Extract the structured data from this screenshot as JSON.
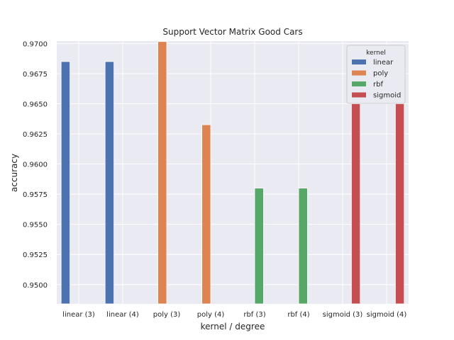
{
  "chart_data": {
    "type": "bar",
    "title": "Support Vector Matrix Good Cars",
    "xlabel": "kernel / degree",
    "ylabel": "accuracy",
    "categories": [
      "linear (3)",
      "linear (4)",
      "poly (3)",
      "poly (4)",
      "rbf (3)",
      "rbf (4)",
      "sigmoid (3)",
      "sigmoid (4)"
    ],
    "ylim": [
      0.9484,
      0.9702
    ],
    "yticks": [
      "0.9500",
      "0.9525",
      "0.9550",
      "0.9575",
      "0.9600",
      "0.9625",
      "0.9650",
      "0.9675",
      "0.9700"
    ],
    "grid": true,
    "legend_title": "kernel",
    "legend_position": "top-right",
    "series": [
      {
        "name": "linear",
        "color": "#4c72b0",
        "values": [
          0.9685,
          0.9685,
          null,
          null,
          null,
          null,
          null,
          null
        ]
      },
      {
        "name": "poly",
        "color": "#dd8452",
        "values": [
          null,
          null,
          0.97016,
          0.96326,
          null,
          null,
          null,
          null
        ]
      },
      {
        "name": "rbf",
        "color": "#55a868",
        "values": [
          null,
          null,
          null,
          null,
          0.958,
          0.958,
          null,
          null
        ]
      },
      {
        "name": "sigmoid",
        "color": "#c44e52",
        "values": [
          null,
          null,
          null,
          null,
          null,
          null,
          0.965,
          0.965
        ]
      }
    ]
  }
}
